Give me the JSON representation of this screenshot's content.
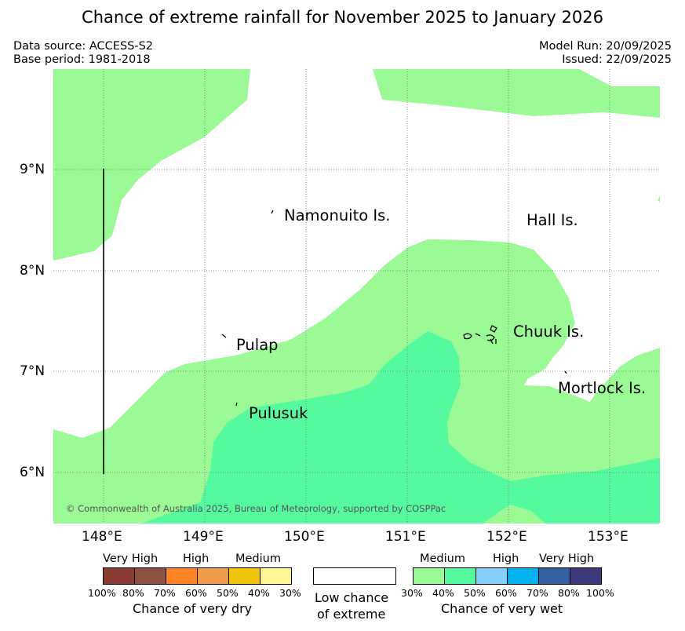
{
  "title": "Chance of extreme rainfall for November 2025 to January 2026",
  "meta": {
    "data_source": "Data source: ACCESS-S2",
    "base_period": "Base period: 1981-2018",
    "model_run": "Model Run: 20/09/2025",
    "issued": "Issued: 22/09/2025"
  },
  "map": {
    "lat_ticks": [
      "9°N",
      "8°N",
      "7°N",
      "6°N"
    ],
    "lon_ticks": [
      "148°E",
      "149°E",
      "150°E",
      "151°E",
      "152°E",
      "153°E"
    ],
    "places": [
      "Namonuito Is.",
      "Hall Is.",
      "Pulap",
      "Chuuk Is.",
      "Mortlock Is.",
      "Pulusuk"
    ],
    "copyright": "© Commonwealth of Australia 2025, Bureau of Meteorology, supported by COSPPac"
  },
  "legend": {
    "dry": {
      "levels": [
        "Very High",
        "High",
        "Medium"
      ],
      "percents": [
        "100%",
        "80%",
        "70%",
        "60%",
        "50%",
        "40%",
        "30%"
      ],
      "colors": [
        "#8b3a34",
        "#8c5242",
        "#ff8427",
        "#f09c4a",
        "#f0c40a",
        "#fff796"
      ],
      "caption": "Chance of very dry"
    },
    "low": {
      "line1": "Low chance",
      "line2": "of extreme",
      "color": "#ffffff"
    },
    "wet": {
      "levels": [
        "Medium",
        "High",
        "Very High"
      ],
      "percents": [
        "30%",
        "40%",
        "50%",
        "60%",
        "70%",
        "80%",
        "100%"
      ],
      "colors": [
        "#9bfa95",
        "#56fa9e",
        "#87cdfa",
        "#00b1ee",
        "#35609f",
        "#3c3a7a"
      ],
      "caption": "Chance of very wet"
    }
  }
}
